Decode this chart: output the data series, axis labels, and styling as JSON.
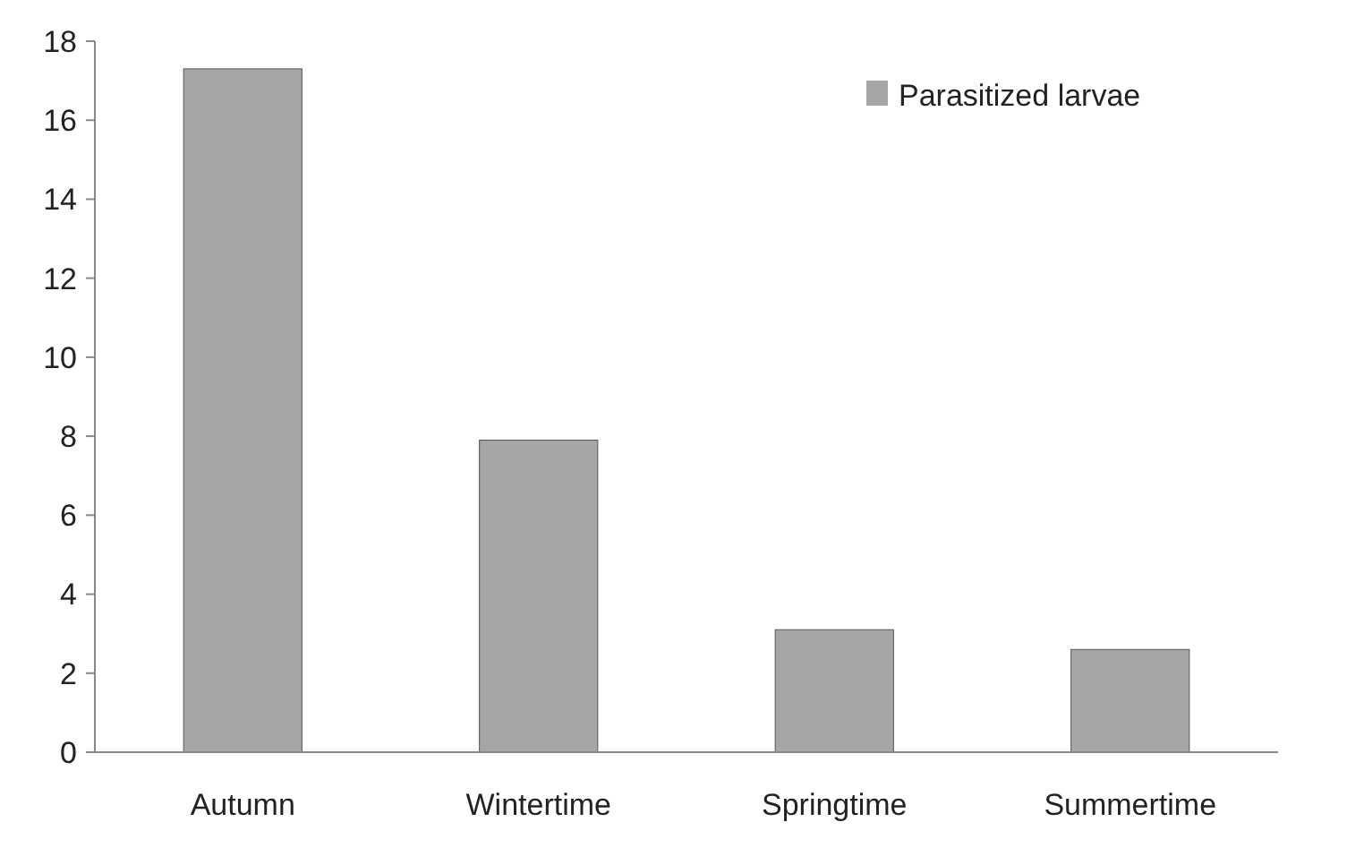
{
  "chart_data": {
    "type": "bar",
    "categories": [
      "Autumn",
      "Wintertime",
      "Springtime",
      "Summertime"
    ],
    "series": [
      {
        "name": "Parasitized larvae",
        "color": "#a6a6a6",
        "values": [
          17.3,
          7.9,
          3.1,
          2.6
        ]
      }
    ],
    "ylim": [
      0,
      18
    ],
    "yticks": [
      0,
      2,
      4,
      6,
      8,
      10,
      12,
      14,
      16,
      18
    ],
    "grid": false,
    "legend": "top right"
  }
}
